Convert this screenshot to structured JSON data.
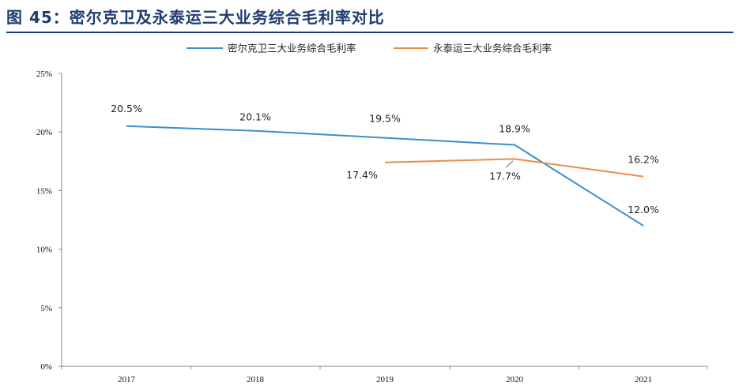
{
  "figure": {
    "title": "图 45：密尔克卫及永泰运三大业务综合毛利率对比"
  },
  "chart_data": {
    "type": "line",
    "title": "密尔克卫及永泰运三大业务综合毛利率对比",
    "categories": [
      "2017",
      "2018",
      "2019",
      "2020",
      "2021"
    ],
    "ylim": [
      0,
      25
    ],
    "yticks": [
      0,
      5,
      10,
      15,
      20,
      25
    ],
    "ytick_labels": [
      "0%",
      "5%",
      "10%",
      "15%",
      "20%",
      "25%"
    ],
    "xlabel": "",
    "ylabel": "",
    "legend_position": "top-center",
    "grid": false,
    "series": [
      {
        "name": "密尔克卫三大业务综合毛利率",
        "color": "#3a8fc8",
        "values": [
          20.5,
          20.1,
          19.5,
          18.9,
          12.0
        ],
        "labels": [
          "20.5%",
          "20.1%",
          "19.5%",
          "18.9%",
          "12.0%"
        ]
      },
      {
        "name": "永泰运三大业务综合毛利率",
        "color": "#ee8a48",
        "values": [
          null,
          null,
          17.4,
          17.7,
          16.2
        ],
        "labels": [
          null,
          null,
          "17.4%",
          "17.7%",
          "16.2%"
        ]
      }
    ]
  }
}
